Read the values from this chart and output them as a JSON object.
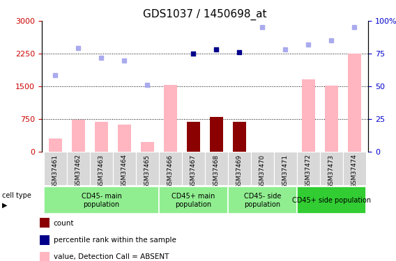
{
  "title": "GDS1037 / 1450698_at",
  "samples": [
    "GSM37461",
    "GSM37462",
    "GSM37463",
    "GSM37464",
    "GSM37465",
    "GSM37466",
    "GSM37467",
    "GSM37468",
    "GSM37469",
    "GSM37470",
    "GSM37471",
    "GSM37472",
    "GSM37473",
    "GSM37474"
  ],
  "bar_values": [
    300,
    730,
    680,
    620,
    220,
    1530,
    680,
    790,
    680,
    null,
    null,
    1650,
    1510,
    2250
  ],
  "bar_absent": [
    true,
    true,
    true,
    true,
    true,
    true,
    false,
    false,
    false,
    true,
    true,
    true,
    true,
    true
  ],
  "rank_values": [
    1750,
    2370,
    2150,
    2080,
    1530,
    null,
    2250,
    2340,
    2280,
    2860,
    2350,
    2460,
    2550,
    2850
  ],
  "rank_absent": [
    true,
    true,
    true,
    true,
    true,
    true,
    false,
    false,
    false,
    true,
    true,
    true,
    true,
    true
  ],
  "ylim_left": [
    0,
    3000
  ],
  "ylim_right": [
    0,
    100
  ],
  "yticks_left": [
    0,
    750,
    1500,
    2250,
    3000
  ],
  "yticks_right": [
    0,
    25,
    50,
    75,
    100
  ],
  "group_labels": [
    "CD45- main\npopulation",
    "CD45+ main\npopulation",
    "CD45- side\npopulation",
    "CD45+ side population"
  ],
  "group_starts": [
    0,
    5,
    8,
    11
  ],
  "group_ends": [
    4,
    7,
    10,
    13
  ],
  "group_colors": [
    "#90EE90",
    "#90EE90",
    "#90EE90",
    "#32CD32"
  ],
  "bar_absent_color": "#FFB6C1",
  "bar_present_color": "#8B0000",
  "rank_absent_color": "#AAAAEE",
  "rank_present_color": "#00008B",
  "axis_color_left": "#CC0000",
  "axis_color_right": "#0000CC",
  "title_fontsize": 11,
  "grid_yticks": [
    750,
    1500,
    2250
  ]
}
